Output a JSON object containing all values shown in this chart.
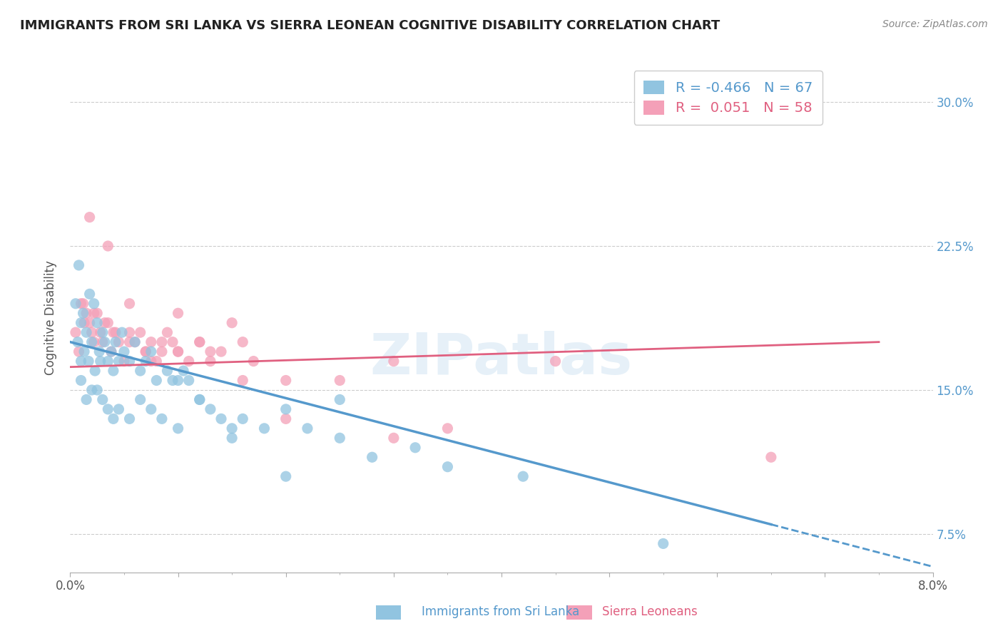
{
  "title": "IMMIGRANTS FROM SRI LANKA VS SIERRA LEONEAN COGNITIVE DISABILITY CORRELATION CHART",
  "source": "Source: ZipAtlas.com",
  "xlabel_bottom": "Immigrants from Sri Lanka",
  "xlabel_bottom2": "Sierra Leoneans",
  "ylabel": "Cognitive Disability",
  "xlim": [
    0.0,
    8.0
  ],
  "ylim": [
    5.5,
    32.0
  ],
  "xtick_labels": [
    "0.0%",
    "",
    "",
    "",
    "",
    "",
    "",
    "",
    "8.0%"
  ],
  "ytick_vals": [
    7.5,
    15.0,
    22.5,
    30.0
  ],
  "ytick_labels_right": [
    "7.5%",
    "15.0%",
    "22.5%",
    "30.0%"
  ],
  "blue_R": -0.466,
  "blue_N": 67,
  "pink_R": 0.051,
  "pink_N": 58,
  "blue_color": "#91c4e0",
  "pink_color": "#f4a0b8",
  "blue_line_color": "#5599cc",
  "pink_line_color": "#e06080",
  "watermark": "ZIPatlas",
  "blue_line_x0": 0.0,
  "blue_line_y0": 17.5,
  "blue_line_x1": 6.5,
  "blue_line_y1": 8.0,
  "blue_dash_x0": 6.5,
  "blue_dash_y0": 8.0,
  "blue_dash_x1": 8.0,
  "blue_dash_y1": 5.8,
  "pink_line_x0": 0.0,
  "pink_line_y0": 16.2,
  "pink_line_x1": 7.5,
  "pink_line_y1": 17.5,
  "blue_scatter_x": [
    0.05,
    0.07,
    0.08,
    0.1,
    0.1,
    0.12,
    0.13,
    0.15,
    0.17,
    0.18,
    0.2,
    0.22,
    0.23,
    0.25,
    0.27,
    0.28,
    0.3,
    0.32,
    0.35,
    0.38,
    0.4,
    0.42,
    0.45,
    0.48,
    0.5,
    0.55,
    0.6,
    0.65,
    0.7,
    0.75,
    0.8,
    0.9,
    0.95,
    1.0,
    1.05,
    1.1,
    1.2,
    1.3,
    1.4,
    1.5,
    1.6,
    1.8,
    2.0,
    2.2,
    2.5,
    2.8,
    3.2,
    3.5,
    4.2,
    5.5,
    0.1,
    0.15,
    0.2,
    0.25,
    0.3,
    0.35,
    0.4,
    0.45,
    0.55,
    0.65,
    0.75,
    0.85,
    1.0,
    1.2,
    1.5,
    2.0,
    2.5
  ],
  "blue_scatter_y": [
    19.5,
    17.5,
    21.5,
    18.5,
    16.5,
    19.0,
    17.0,
    18.0,
    16.5,
    20.0,
    17.5,
    19.5,
    16.0,
    18.5,
    17.0,
    16.5,
    18.0,
    17.5,
    16.5,
    17.0,
    16.0,
    17.5,
    16.5,
    18.0,
    17.0,
    16.5,
    17.5,
    16.0,
    16.5,
    17.0,
    15.5,
    16.0,
    15.5,
    15.5,
    16.0,
    15.5,
    14.5,
    14.0,
    13.5,
    13.0,
    13.5,
    13.0,
    14.0,
    13.0,
    12.5,
    11.5,
    12.0,
    11.0,
    10.5,
    7.0,
    15.5,
    14.5,
    15.0,
    15.0,
    14.5,
    14.0,
    13.5,
    14.0,
    13.5,
    14.5,
    14.0,
    13.5,
    13.0,
    14.5,
    12.5,
    10.5,
    14.5
  ],
  "pink_scatter_x": [
    0.05,
    0.08,
    0.1,
    0.13,
    0.15,
    0.18,
    0.2,
    0.22,
    0.25,
    0.28,
    0.3,
    0.35,
    0.38,
    0.4,
    0.45,
    0.5,
    0.55,
    0.6,
    0.65,
    0.7,
    0.75,
    0.8,
    0.85,
    0.9,
    0.95,
    1.0,
    1.1,
    1.2,
    1.3,
    1.5,
    1.7,
    2.0,
    2.5,
    3.0,
    3.5,
    4.5,
    5.5,
    6.5,
    0.12,
    0.22,
    0.32,
    0.42,
    0.55,
    0.7,
    0.85,
    1.0,
    1.2,
    1.4,
    1.6,
    0.18,
    0.35,
    0.55,
    0.75,
    1.0,
    1.3,
    1.6,
    2.0,
    3.0
  ],
  "pink_scatter_y": [
    18.0,
    17.0,
    19.5,
    18.5,
    19.0,
    18.5,
    18.0,
    17.5,
    19.0,
    18.0,
    17.5,
    18.5,
    17.0,
    18.0,
    17.5,
    16.5,
    18.0,
    17.5,
    18.0,
    17.0,
    17.5,
    16.5,
    17.0,
    18.0,
    17.5,
    17.0,
    16.5,
    17.5,
    17.0,
    18.5,
    16.5,
    15.5,
    15.5,
    16.5,
    13.0,
    16.5,
    30.0,
    11.5,
    19.5,
    19.0,
    18.5,
    18.0,
    17.5,
    17.0,
    17.5,
    17.0,
    17.5,
    17.0,
    17.5,
    24.0,
    22.5,
    19.5,
    16.5,
    19.0,
    16.5,
    15.5,
    13.5,
    12.5
  ]
}
